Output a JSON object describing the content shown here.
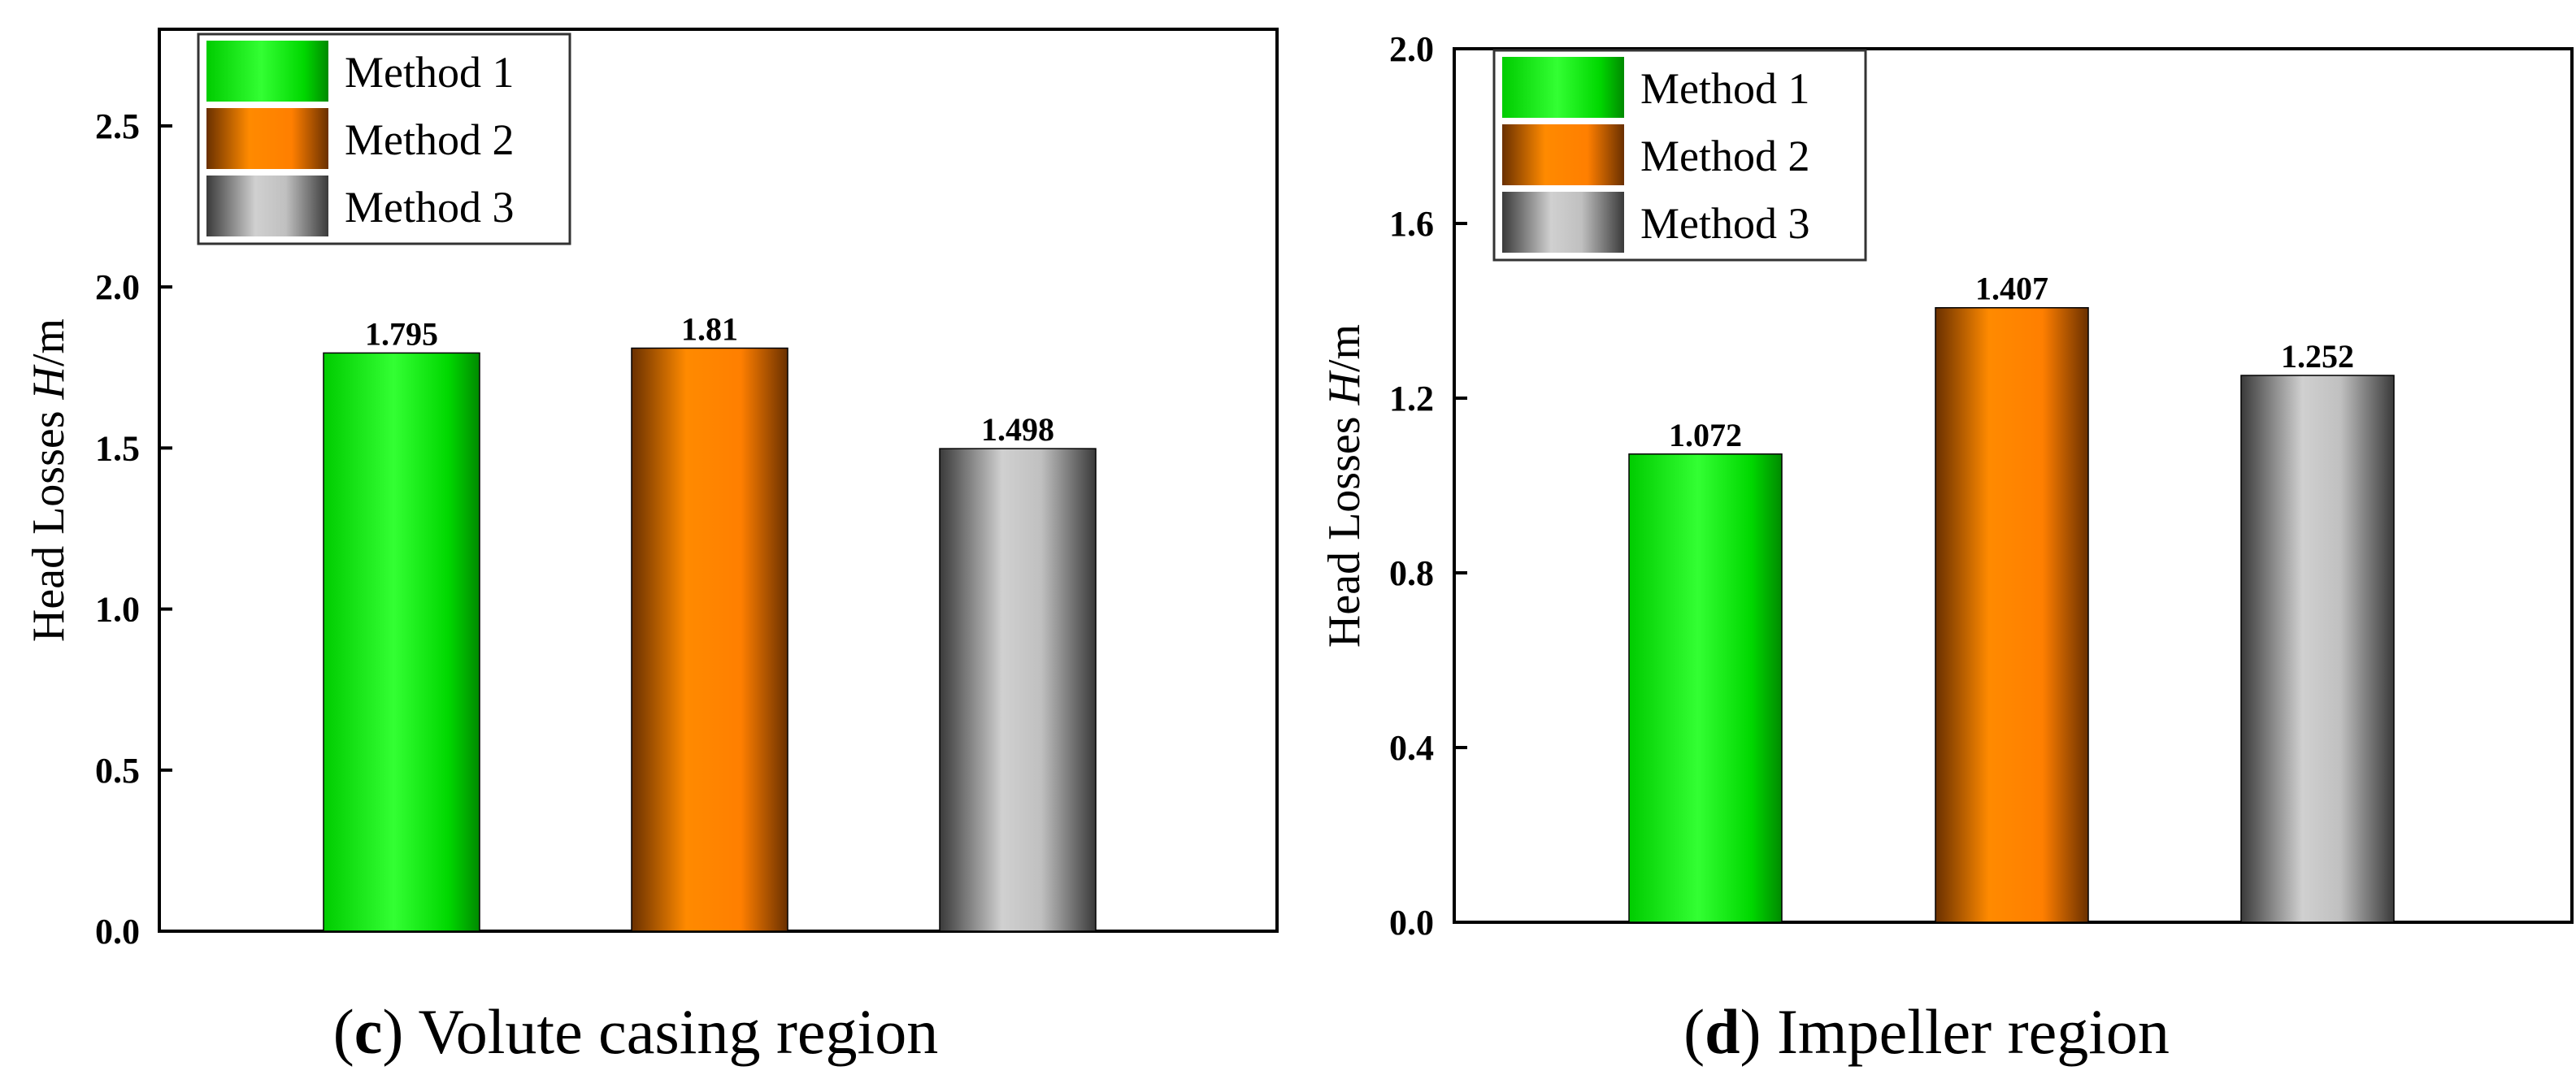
{
  "legend": [
    "Method 1",
    "Method 2",
    "Method 3"
  ],
  "colors": {
    "method1": "#00e000",
    "method2": "#ff7f00",
    "method3": "#c8c8c8",
    "method1_edge": "#007a00",
    "method2_edge": "#6a3000",
    "method3_edge": "#3a3a3a"
  },
  "chart_data": [
    {
      "type": "bar",
      "panel": "c",
      "caption_letter": "c",
      "caption_text": " Volute casing region",
      "categories": [
        "Method 1",
        "Method 2",
        "Method 3"
      ],
      "values": [
        1.795,
        1.81,
        1.498
      ],
      "value_labels": [
        "1.795",
        "1.81",
        "1.498"
      ],
      "ylabel": "Head Losses ",
      "ylabel_var": "H",
      "ylabel_unit": "/m",
      "ylim": [
        0,
        2.8
      ],
      "yticks": [
        "0.0",
        "0.5",
        "1.0",
        "1.5",
        "2.0",
        "2.5"
      ],
      "ytick_values": [
        0,
        0.5,
        1.0,
        1.5,
        2.0,
        2.5
      ],
      "legend_position": "top-left"
    },
    {
      "type": "bar",
      "panel": "d",
      "caption_letter": "d",
      "caption_text": " Impeller region",
      "categories": [
        "Method 1",
        "Method 2",
        "Method 3"
      ],
      "values": [
        1.072,
        1.407,
        1.252
      ],
      "value_labels": [
        "1.072",
        "1.407",
        "1.252"
      ],
      "ylabel": "Head Losses ",
      "ylabel_var": "H",
      "ylabel_unit": "/m",
      "ylim": [
        0,
        2.0
      ],
      "yticks": [
        "0.0",
        "0.4",
        "0.8",
        "1.2",
        "1.6",
        "2.0"
      ],
      "ytick_values": [
        0,
        0.4,
        0.8,
        1.2,
        1.6,
        2.0
      ],
      "legend_position": "top-left"
    }
  ]
}
